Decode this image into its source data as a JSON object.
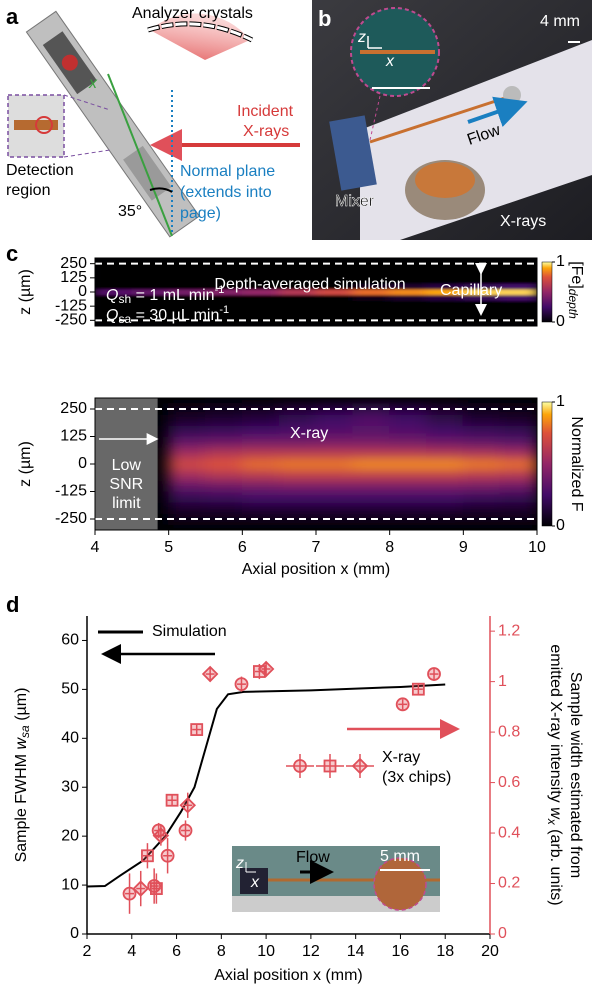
{
  "panel_labels": [
    "a",
    "b",
    "c",
    "d"
  ],
  "panel_a": {
    "analyzer": "Analyzer crystals",
    "incident": [
      "Incident",
      "X-rays"
    ],
    "x_axis": "x",
    "detection": [
      "Detection",
      "region"
    ],
    "normal_plane": [
      "Normal plane",
      "(extends into",
      "page)"
    ],
    "angle": "35°"
  },
  "panel_b": {
    "scale": "4 mm",
    "z": "z",
    "x": "x",
    "flow": "Flow",
    "mixer": "Mixer",
    "xrays": "X-rays"
  },
  "panel_d_inset": {
    "flow": "Flow",
    "scale": "5 mm",
    "z": "z",
    "x": "x"
  },
  "chart_data": [
    {
      "type": "heatmap",
      "colormap": "inferno",
      "x": [
        4.25,
        4.75,
        5.25,
        5.75,
        6.25,
        6.75,
        7.25,
        7.75,
        8.25,
        8.75,
        9.25,
        9.75
      ],
      "y": [
        -250,
        -200,
        -150,
        -100,
        -50,
        0,
        50,
        100,
        150,
        200,
        250
      ],
      "values": [
        [
          0,
          0,
          0,
          0,
          0,
          0,
          0,
          0,
          0,
          0,
          0,
          0
        ],
        [
          0,
          0,
          0,
          0,
          0,
          0,
          0,
          0,
          0,
          0,
          0,
          0
        ],
        [
          0,
          0,
          0,
          0,
          0,
          0,
          0,
          0,
          0,
          0,
          0,
          0
        ],
        [
          0,
          0,
          0,
          0,
          0,
          0,
          0,
          0,
          0,
          0,
          0,
          0
        ],
        [
          0,
          0,
          0,
          0,
          0,
          0,
          0,
          0.05,
          0.1,
          0.15,
          0.2,
          0.25
        ],
        [
          0.3,
          0.35,
          0.4,
          0.45,
          0.5,
          0.6,
          0.7,
          0.8,
          0.85,
          0.9,
          0.95,
          0.95
        ],
        [
          0,
          0,
          0,
          0,
          0,
          0,
          0,
          0.05,
          0.1,
          0.15,
          0.2,
          0.25
        ],
        [
          0,
          0,
          0,
          0,
          0,
          0,
          0,
          0,
          0,
          0,
          0,
          0
        ],
        [
          0,
          0,
          0,
          0,
          0,
          0,
          0,
          0,
          0,
          0,
          0,
          0
        ],
        [
          0,
          0,
          0,
          0,
          0,
          0,
          0,
          0,
          0,
          0,
          0,
          0
        ],
        [
          0,
          0,
          0,
          0,
          0,
          0,
          0,
          0,
          0,
          0,
          0,
          0
        ]
      ],
      "xlim": [
        4,
        10
      ],
      "ylim": [
        -300,
        300
      ],
      "yticks": [
        -250,
        -125,
        0,
        125,
        250
      ],
      "ylabel": "z (µm)",
      "clim": [
        0,
        1
      ],
      "cticks": [
        0,
        1
      ],
      "colorbar_label": "[Fe]",
      "colorbar_label_sub": "depth",
      "walls": [
        -250,
        250
      ],
      "annotations": {
        "title": "Depth-averaged simulation",
        "q_sh": [
          "Q",
          "sh",
          " = 1 mL min",
          "-1"
        ],
        "q_sa": [
          "Q",
          "sa",
          " = 30 µL min",
          "-1"
        ],
        "capillary": "Capillary"
      }
    },
    {
      "type": "heatmap",
      "colormap": "inferno",
      "x": [
        4.25,
        4.75,
        5.25,
        5.75,
        6.25,
        6.75,
        7.25,
        7.75,
        8.25,
        8.75,
        9.25,
        9.75
      ],
      "y": [
        -250,
        -200,
        -150,
        -100,
        -50,
        0,
        50,
        100,
        150,
        200,
        250
      ],
      "values": [
        [
          null,
          null,
          0.05,
          0.05,
          0.05,
          0.05,
          0.05,
          0.05,
          0.05,
          0.05,
          0.05,
          0.05
        ],
        [
          null,
          null,
          0.1,
          0.1,
          0.12,
          0.12,
          0.12,
          0.12,
          0.12,
          0.12,
          0.1,
          0.1
        ],
        [
          null,
          null,
          0.2,
          0.22,
          0.25,
          0.25,
          0.25,
          0.25,
          0.25,
          0.25,
          0.22,
          0.2
        ],
        [
          null,
          null,
          0.35,
          0.38,
          0.4,
          0.42,
          0.42,
          0.42,
          0.42,
          0.42,
          0.4,
          0.38
        ],
        [
          null,
          null,
          0.55,
          0.6,
          0.62,
          0.65,
          0.65,
          0.65,
          0.65,
          0.65,
          0.62,
          0.6
        ],
        [
          null,
          null,
          0.7,
          0.75,
          0.8,
          0.82,
          0.82,
          0.85,
          0.85,
          0.85,
          0.82,
          0.8
        ],
        [
          null,
          null,
          0.55,
          0.6,
          0.62,
          0.62,
          0.62,
          0.62,
          0.62,
          0.6,
          0.58,
          0.55
        ],
        [
          null,
          null,
          0.35,
          0.38,
          0.4,
          0.4,
          0.42,
          0.42,
          0.4,
          0.38,
          0.35,
          0.32
        ],
        [
          null,
          null,
          0.2,
          0.22,
          0.25,
          0.28,
          0.3,
          0.32,
          0.3,
          0.25,
          0.22,
          0.2
        ],
        [
          null,
          null,
          0.1,
          0.12,
          0.15,
          0.2,
          0.25,
          0.3,
          0.25,
          0.18,
          0.12,
          0.1
        ],
        [
          null,
          null,
          0.05,
          0.06,
          0.08,
          0.12,
          0.15,
          0.18,
          0.15,
          0.1,
          0.06,
          0.05
        ]
      ],
      "xlim": [
        4,
        10
      ],
      "xticks": [
        4,
        5,
        6,
        7,
        8,
        9,
        10
      ],
      "ylim": [
        -300,
        300
      ],
      "yticks": [
        -250,
        -125,
        0,
        125,
        250
      ],
      "xlabel": "Axial position x (mm)",
      "ylabel": "z (µm)",
      "clim": [
        0,
        1
      ],
      "cticks": [
        0,
        1
      ],
      "colorbar_label": "Normalized F",
      "walls": [
        -250,
        250
      ],
      "masked_xlim": [
        4,
        4.85
      ],
      "annotations": {
        "xray": "X-ray",
        "low_snr": [
          "Low",
          "SNR",
          "limit"
        ]
      }
    },
    {
      "type": "scatter",
      "xlim": [
        2,
        20
      ],
      "xticks": [
        2,
        4,
        6,
        8,
        10,
        12,
        14,
        16,
        18,
        20
      ],
      "ylim": [
        0,
        65
      ],
      "yticks": [
        0,
        10,
        20,
        30,
        40,
        50,
        60
      ],
      "y2lim": [
        0,
        1.26
      ],
      "y2ticks": [
        0,
        0.2,
        0.4,
        0.6,
        0.8,
        1,
        1.2
      ],
      "xlabel": "Axial position x (mm)",
      "ylabel": "Sample FWHM ",
      "ylabel_var": "w",
      "ylabel_sub": "sa",
      "ylabel_unit": " (µm)",
      "y2label": [
        "Sample width estimated from",
        "emitted X-ray intensity ",
        "w",
        "x",
        " (arb. units)"
      ],
      "series": [
        {
          "name": "Simulation",
          "color": "#000000",
          "x": [
            2,
            2.8,
            3.5,
            4.5,
            5.5,
            6.2,
            6.8,
            7.3,
            7.8,
            8.3,
            9,
            12,
            16,
            18
          ],
          "values": [
            9.7,
            9.8,
            12,
            15,
            20,
            25,
            30,
            38,
            46,
            49,
            49.5,
            49.8,
            50.5,
            51
          ]
        },
        {
          "name": "X-ray",
          "legend_note": "(3x chips)",
          "axis": "y2",
          "color": "#e0505a",
          "x": [
            3.9,
            4.4,
            4.7,
            5.0,
            5.1,
            5.2,
            5.3,
            5.6,
            5.8,
            6.4,
            6.5,
            6.9,
            7.5,
            8.9,
            9.7,
            10.0,
            16.1,
            16.8,
            17.5
          ],
          "values": [
            0.16,
            0.18,
            0.31,
            0.19,
            0.18,
            0.41,
            0.39,
            0.31,
            0.53,
            0.41,
            0.51,
            0.81,
            1.03,
            0.99,
            1.04,
            1.05,
            0.91,
            0.97,
            1.03
          ],
          "yerr": [
            0.08,
            0.07,
            0.05,
            0.07,
            0.06,
            0.03,
            0.04,
            0.07,
            0.02,
            0.04,
            0.05,
            0.02,
            0.03,
            0.03,
            0.03,
            0.03,
            0.02,
            0.02,
            0.02
          ],
          "xerr": [
            0.2,
            0.2,
            0.2,
            0.2,
            0.2,
            0.2,
            0.2,
            0.2,
            0.2,
            0.2,
            0.2,
            0.2,
            0.2,
            0.2,
            0.2,
            0.2,
            0.2,
            0.2,
            0.2
          ],
          "markers": [
            "circle",
            "diamond",
            "square",
            "circle",
            "square",
            "circle",
            "diamond",
            "circle",
            "square",
            "circle",
            "diamond",
            "square",
            "diamond",
            "circle",
            "square",
            "diamond",
            "circle",
            "square",
            "circle"
          ]
        }
      ]
    }
  ]
}
